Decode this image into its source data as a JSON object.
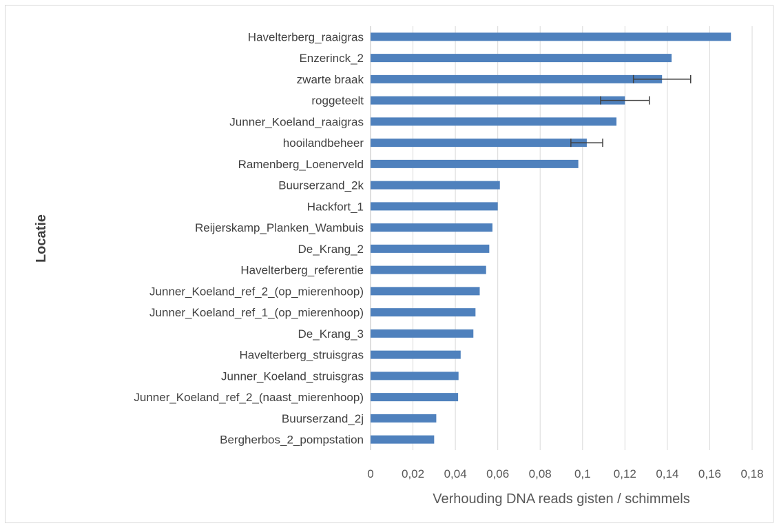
{
  "chart_data": {
    "type": "bar",
    "orientation": "horizontal",
    "xlabel": "Verhouding DNA reads gisten / schimmels",
    "ylabel": "Locatie",
    "xlim": [
      0,
      0.18
    ],
    "xticks": [
      "0",
      "0,02",
      "0,04",
      "0,06",
      "0,08",
      "0,1",
      "0,12",
      "0,14",
      "0,16",
      "0,18"
    ],
    "grid": "vertical",
    "bar_color": "#4f81bd",
    "error_bar_color": "#404040",
    "categories": [
      "Havelterberg_raaigras",
      "Enzerinck_2",
      "zwarte braak",
      "roggeteelt",
      "Junner_Koeland_raaigras",
      "hooilandbeheer",
      "Ramenberg_Loenerveld",
      "Buurserzand_2k",
      "Hackfort_1",
      "Reijerskamp_Planken_Wambuis",
      "De_Krang_2",
      "Havelterberg_referentie",
      "Junner_Koeland_ref_2_(op_mierenhoop)",
      "Junner_Koeland_ref_1_(op_mierenhoop)",
      "De_Krang_3",
      "Havelterberg_struisgras",
      "Junner_Koeland_struisgras",
      "Junner_Koeland_ref_2_(naast_mierenhoop)",
      "Buurserzand_2j",
      "Bergherbos_2_pompstation"
    ],
    "values": [
      0.17,
      0.142,
      0.1375,
      0.12,
      0.116,
      0.102,
      0.098,
      0.061,
      0.06,
      0.0575,
      0.056,
      0.0545,
      0.0515,
      0.0495,
      0.0485,
      0.0425,
      0.0415,
      0.0413,
      0.031,
      0.03
    ],
    "errors": [
      null,
      null,
      0.0135,
      0.0115,
      null,
      0.0075,
      null,
      null,
      null,
      null,
      null,
      null,
      null,
      null,
      null,
      null,
      null,
      null,
      null,
      null
    ]
  }
}
